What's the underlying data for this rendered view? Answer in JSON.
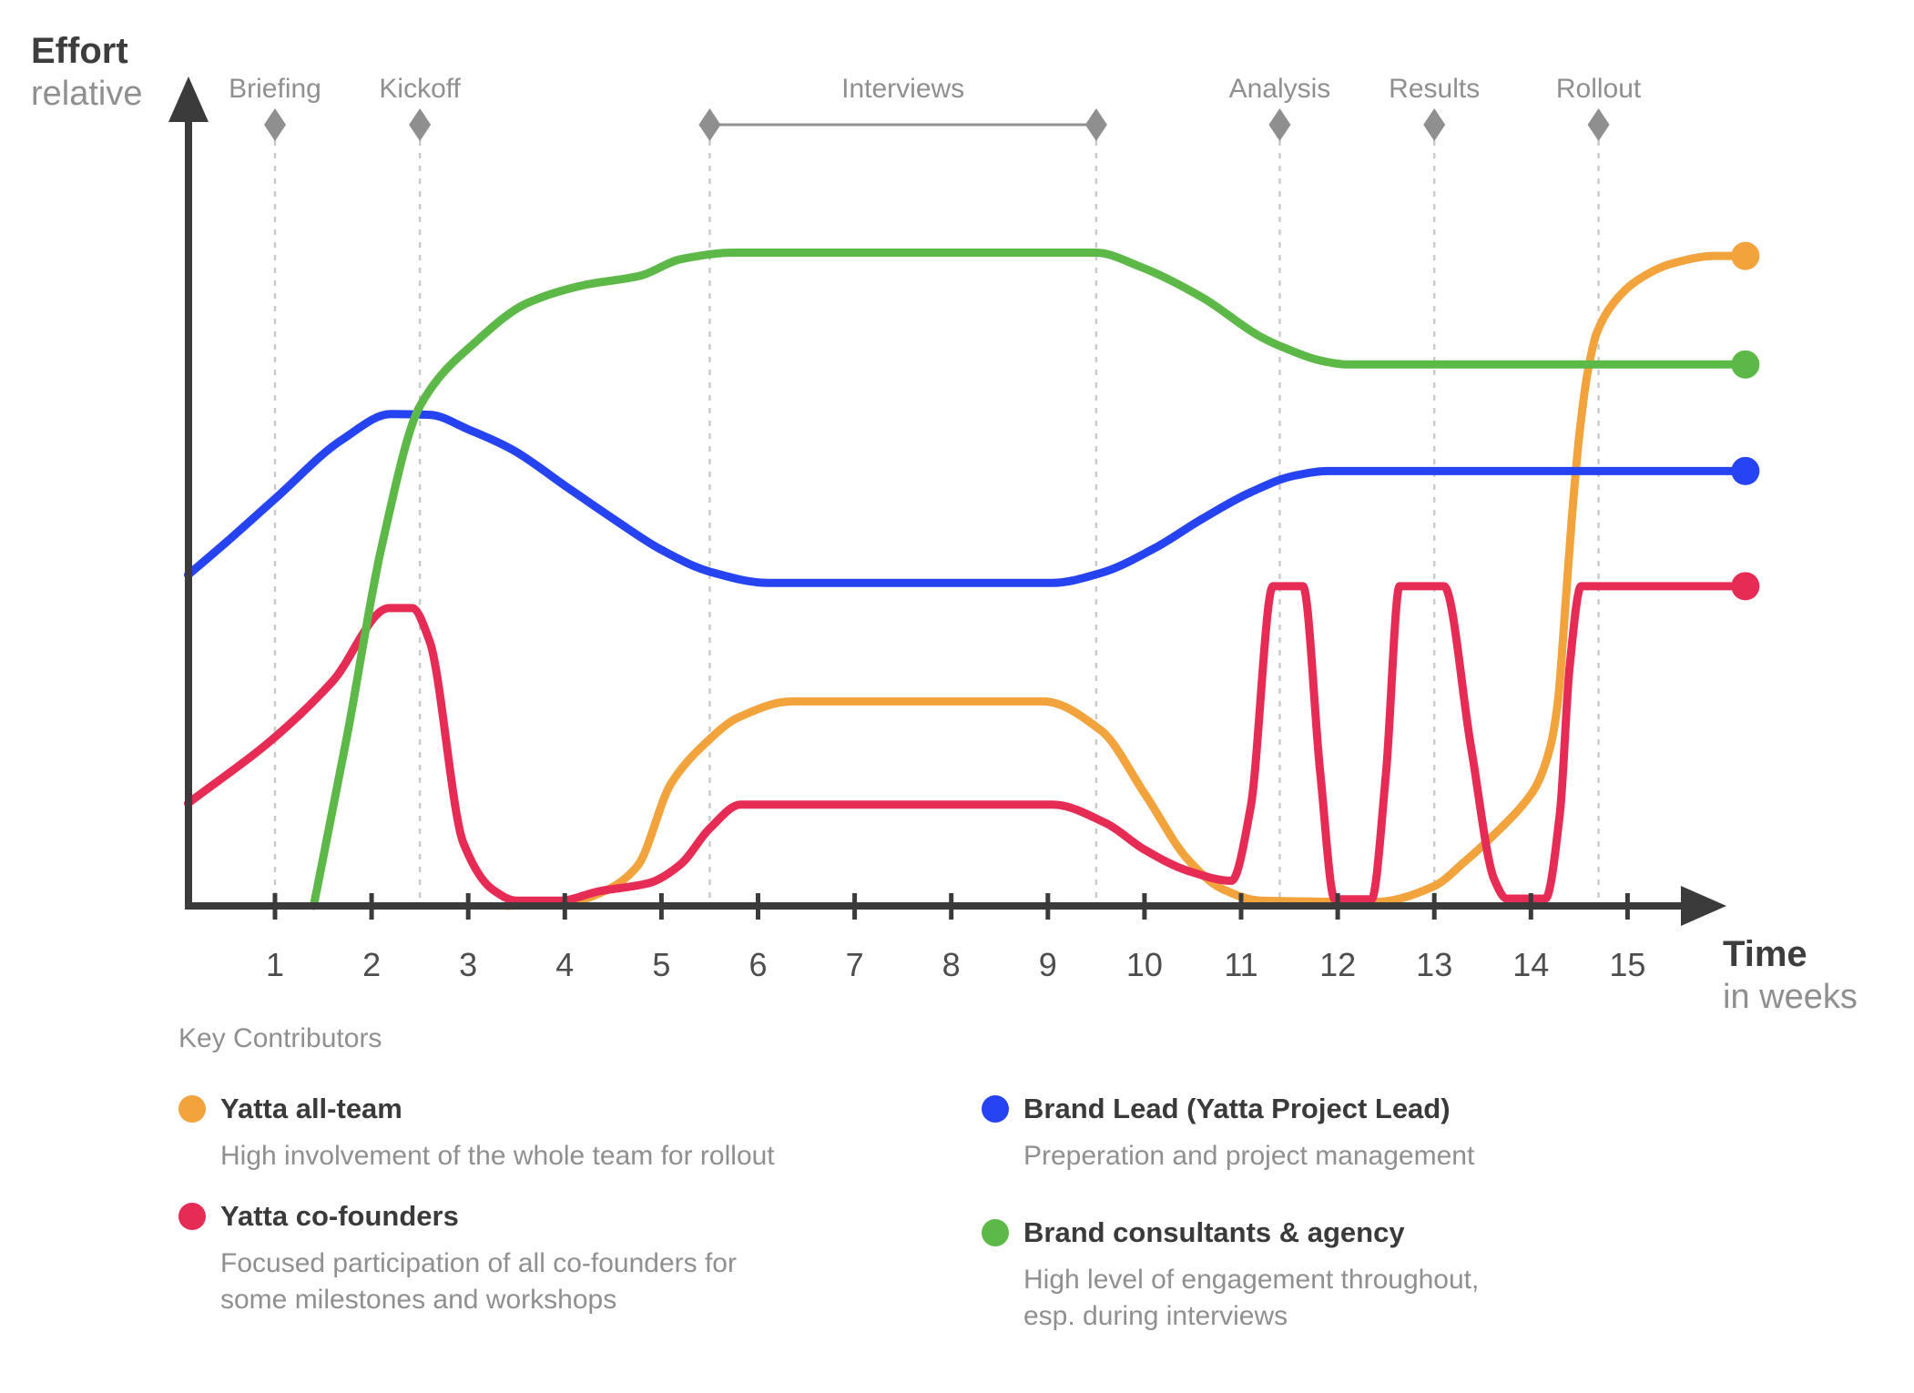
{
  "header": {
    "y_axis_title": "Effort",
    "y_axis_subtitle": "relative",
    "x_axis_title": "Time",
    "x_axis_subtitle": "in weeks"
  },
  "chart_data": {
    "type": "line",
    "title": "Effort (relative) over Time (in weeks) per contributor group",
    "x_axis": {
      "label": "Time",
      "sublabel": "in weeks",
      "ticks": [
        1,
        2,
        3,
        4,
        5,
        6,
        7,
        8,
        9,
        10,
        11,
        12,
        13,
        14,
        15
      ],
      "range": [
        0,
        16.6
      ],
      "grid": false
    },
    "y_axis": {
      "label": "Effort",
      "sublabel": "relative",
      "range": [
        0,
        100
      ],
      "grid": false
    },
    "milestones": [
      {
        "label": "Briefing",
        "week": 1.0
      },
      {
        "label": "Kickoff",
        "week": 2.5
      },
      {
        "label": "Interviews",
        "week_start": 5.5,
        "week_end": 9.5
      },
      {
        "label": "Analysis",
        "week": 11.4
      },
      {
        "label": "Results",
        "week": 13.0
      },
      {
        "label": "Rollout",
        "week": 14.7
      }
    ],
    "series": [
      {
        "name": "Yatta all-team",
        "color": "#F2A33C",
        "points": [
          [
            3.4,
            0
          ],
          [
            4.0,
            0.4
          ],
          [
            4.45,
            2.5
          ],
          [
            4.75,
            6
          ],
          [
            5.1,
            18.5
          ],
          [
            5.45,
            24.5
          ],
          [
            5.8,
            28.5
          ],
          [
            6.35,
            30.9
          ],
          [
            8.95,
            30.9
          ],
          [
            9.55,
            26.5
          ],
          [
            10.0,
            17
          ],
          [
            10.45,
            7
          ],
          [
            10.8,
            2.6
          ],
          [
            11.2,
            0.8
          ],
          [
            12.4,
            0.6
          ],
          [
            13.0,
            3
          ],
          [
            13.3,
            6.5
          ],
          [
            13.6,
            10.5
          ],
          [
            13.9,
            15
          ],
          [
            14.05,
            18
          ],
          [
            14.2,
            24
          ],
          [
            14.28,
            31
          ],
          [
            14.34,
            42
          ],
          [
            14.42,
            58
          ],
          [
            14.5,
            71
          ],
          [
            14.58,
            80
          ],
          [
            14.68,
            86.5
          ],
          [
            14.85,
            91
          ],
          [
            15.1,
            94.5
          ],
          [
            15.45,
            97
          ],
          [
            15.9,
            98.2
          ],
          [
            16.22,
            98.2
          ]
        ]
      },
      {
        "name": "Yatta co-founders",
        "color": "#E62C55",
        "points": [
          [
            0.1,
            15.5
          ],
          [
            1.0,
            25.5
          ],
          [
            1.6,
            34
          ],
          [
            2.18,
            45
          ],
          [
            2.42,
            45
          ],
          [
            2.6,
            40
          ],
          [
            2.95,
            9.5
          ],
          [
            3.25,
            2.5
          ],
          [
            3.5,
            0.8
          ],
          [
            3.95,
            0.8
          ],
          [
            4.35,
            2.2
          ],
          [
            4.88,
            3.5
          ],
          [
            5.2,
            6.3
          ],
          [
            5.5,
            11.7
          ],
          [
            5.82,
            15.3
          ],
          [
            9.05,
            15.3
          ],
          [
            9.6,
            12.5
          ],
          [
            10.0,
            8.5
          ],
          [
            10.45,
            5.3
          ],
          [
            10.9,
            3.8
          ],
          [
            11.1,
            15
          ],
          [
            11.33,
            48.3
          ],
          [
            11.64,
            48.3
          ],
          [
            11.82,
            20
          ],
          [
            11.97,
            1
          ],
          [
            12.35,
            1
          ],
          [
            12.5,
            20
          ],
          [
            12.64,
            48.3
          ],
          [
            13.1,
            48.3
          ],
          [
            13.38,
            24
          ],
          [
            13.62,
            4
          ],
          [
            13.75,
            1.1
          ],
          [
            14.15,
            1.1
          ],
          [
            14.3,
            14
          ],
          [
            14.4,
            36
          ],
          [
            14.52,
            48.3
          ],
          [
            16.22,
            48.3
          ]
        ]
      },
      {
        "name": "Brand Lead (Yatta Project Lead)",
        "color": "#2543F0",
        "points": [
          [
            0.1,
            50
          ],
          [
            0.5,
            55
          ],
          [
            1.0,
            61.5
          ],
          [
            1.7,
            70.5
          ],
          [
            2.2,
            74.3
          ],
          [
            2.6,
            74.2
          ],
          [
            3.0,
            72
          ],
          [
            3.45,
            69
          ],
          [
            4.0,
            63.5
          ],
          [
            4.5,
            58.5
          ],
          [
            5.0,
            53.8
          ],
          [
            5.5,
            50.5
          ],
          [
            6.1,
            48.8
          ],
          [
            9.05,
            48.8
          ],
          [
            9.55,
            50.3
          ],
          [
            10.1,
            54
          ],
          [
            10.6,
            58.5
          ],
          [
            11.1,
            62.5
          ],
          [
            11.55,
            65
          ],
          [
            11.9,
            65.7
          ],
          [
            16.22,
            65.7
          ]
        ]
      },
      {
        "name": "Brand consultants & agency",
        "color": "#5CB947",
        "points": [
          [
            1.4,
            0
          ],
          [
            1.75,
            26
          ],
          [
            2.1,
            54
          ],
          [
            2.5,
            75.5
          ],
          [
            3.1,
            85.5
          ],
          [
            3.6,
            91
          ],
          [
            4.2,
            93.8
          ],
          [
            4.78,
            95.2
          ],
          [
            5.2,
            97.7
          ],
          [
            5.75,
            98.7
          ],
          [
            9.5,
            98.7
          ],
          [
            9.95,
            96.6
          ],
          [
            10.6,
            91.9
          ],
          [
            11.2,
            86
          ],
          [
            11.45,
            84.3
          ],
          [
            11.85,
            82.3
          ],
          [
            12.1,
            81.8
          ],
          [
            16.22,
            81.8
          ]
        ]
      }
    ],
    "legend_position": "bottom"
  },
  "legend": {
    "title": "Key Contributors",
    "items": [
      {
        "name": "Yatta all-team",
        "color": "#F2A33C",
        "description": "High involvement of the whole team for rollout"
      },
      {
        "name": "Yatta co-founders",
        "color": "#E62C55",
        "description": "Focused participation of all co-founders for some milestones and workshops"
      },
      {
        "name": "Brand Lead (Yatta Project Lead)",
        "color": "#2543F0",
        "description": "Preperation and project management"
      },
      {
        "name": "Brand consultants & agency",
        "color": "#5CB947",
        "description": "High level of engagement throughout, esp. during interviews"
      }
    ]
  }
}
